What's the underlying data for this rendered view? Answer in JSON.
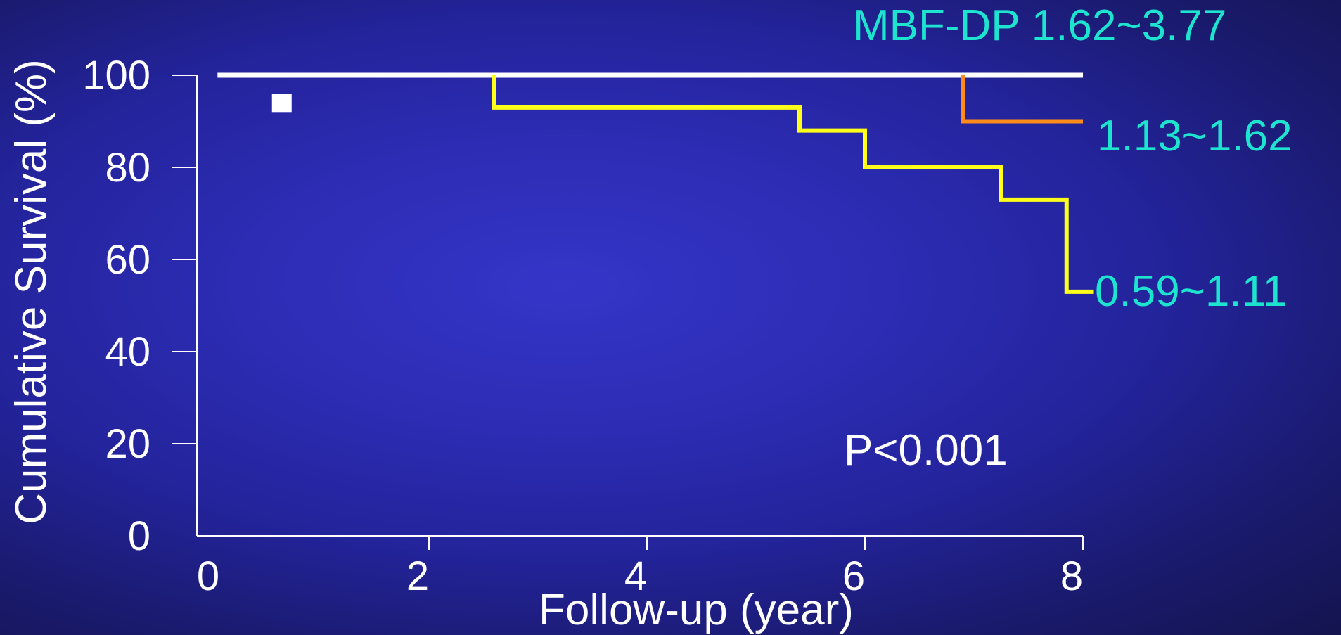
{
  "chart_data": {
    "type": "line",
    "title": "",
    "xlabel": "Follow-up (year)",
    "ylabel": "Cumulative Survival (%)",
    "xlim": [
      0,
      8
    ],
    "ylim": [
      0,
      100
    ],
    "xticks": [
      0,
      2,
      4,
      6,
      8
    ],
    "yticks": [
      0,
      20,
      40,
      60,
      80,
      100
    ],
    "grid": false,
    "step": true,
    "series": [
      {
        "name": "MBF-DP 1.62~3.77",
        "color": "#ffffff",
        "x": [
          0,
          8
        ],
        "y": [
          100,
          100
        ]
      },
      {
        "name": "1.13~1.62",
        "color": "#ff8c1a",
        "x": [
          0,
          6.9,
          8
        ],
        "y": [
          100,
          90,
          90
        ]
      },
      {
        "name": "0.59~1.11",
        "color": "#ffff1a",
        "x": [
          0,
          2.6,
          5.4,
          6.0,
          7.25,
          7.85,
          8.1
        ],
        "y": [
          100,
          93,
          88,
          80,
          73,
          53,
          53
        ]
      }
    ],
    "annotations": [
      "P<0.001"
    ],
    "censor_marks": [
      {
        "x": 0.65,
        "y": 94,
        "color": "#ffffff"
      }
    ]
  }
}
